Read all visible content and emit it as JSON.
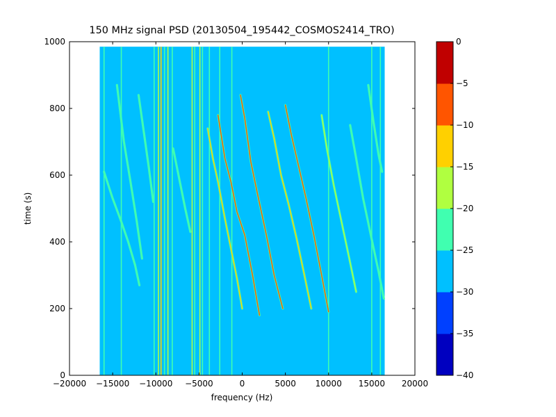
{
  "chart_data": {
    "type": "heatmap",
    "title": "150 MHz signal PSD (20130504_195442_COSMOS2414_TRO)",
    "xlabel": "frequency (Hz)",
    "ylabel": "time (s)",
    "xlim": [
      -20000,
      20000
    ],
    "ylim": [
      0,
      1000
    ],
    "x_ticks": [
      -20000,
      -15000,
      -10000,
      -5000,
      0,
      5000,
      10000,
      15000,
      20000
    ],
    "x_tick_labels": [
      "−20000",
      "−15000",
      "−10000",
      "−5000",
      "0",
      "5000",
      "10000",
      "15000",
      "20000"
    ],
    "y_ticks": [
      0,
      200,
      400,
      600,
      800,
      1000
    ],
    "y_tick_labels": [
      "0",
      "200",
      "400",
      "600",
      "800",
      "1000"
    ],
    "data_extent": {
      "freq_min": -16500,
      "freq_max": 16500,
      "time_min": 0,
      "time_max": 985
    },
    "background_level": -27.5,
    "background_color": "#00c0ff",
    "colorbar": {
      "levels": [
        -40,
        -35,
        -30,
        -25,
        -20,
        -15,
        -10,
        -5,
        0
      ],
      "tick_labels": [
        "−40",
        "−35",
        "−30",
        "−25",
        "−20",
        "−15",
        "−10",
        "−5",
        "0"
      ],
      "colors": [
        "#0000c0",
        "#0040ff",
        "#00c0ff",
        "#40ffb0",
        "#b0ff40",
        "#ffd000",
        "#ff5500",
        "#c00000"
      ]
    },
    "vertical_lines": [
      {
        "freq": -16000,
        "level": -22
      },
      {
        "freq": -14000,
        "level": -22
      },
      {
        "freq": -10200,
        "level": -22
      },
      {
        "freq": -9700,
        "level": -17
      },
      {
        "freq": -9400,
        "level": -12
      },
      {
        "freq": -9000,
        "level": -22
      },
      {
        "freq": -8600,
        "level": -17
      },
      {
        "freq": -8100,
        "level": -22
      },
      {
        "freq": -5800,
        "level": -17
      },
      {
        "freq": -5500,
        "level": -22
      },
      {
        "freq": -4900,
        "level": -17
      },
      {
        "freq": -4600,
        "level": -22
      },
      {
        "freq": -3800,
        "level": -22
      },
      {
        "freq": -2600,
        "level": -22
      },
      {
        "freq": -1200,
        "level": -22
      },
      {
        "freq": 10000,
        "level": -22
      },
      {
        "freq": 15000,
        "level": -22
      },
      {
        "freq": 16000,
        "level": -22
      }
    ],
    "series": [
      {
        "x": [
          -16000,
          -15000,
          -14000,
          -13200,
          -12400,
          -11900
        ],
        "y": [
          610,
          530,
          460,
          400,
          330,
          270
        ],
        "level": -22
      },
      {
        "x": [
          -14500,
          -13700,
          -13000,
          -12200,
          -11600
        ],
        "y": [
          870,
          700,
          590,
          460,
          350
        ],
        "level": -22
      },
      {
        "x": [
          -12000,
          -11400,
          -10800,
          -10300
        ],
        "y": [
          840,
          730,
          620,
          520
        ],
        "level": -22
      },
      {
        "x": [
          -8000,
          -7300,
          -6600,
          -6000
        ],
        "y": [
          680,
          590,
          500,
          430
        ],
        "level": -22
      },
      {
        "x": [
          -4000,
          -3400,
          -2800,
          -2000,
          -1300,
          -600,
          0
        ],
        "y": [
          740,
          650,
          580,
          470,
          380,
          290,
          200
        ],
        "level": -12
      },
      {
        "x": [
          -2800,
          -2000,
          -1300,
          -600,
          300,
          1200,
          2000
        ],
        "y": [
          780,
          650,
          580,
          490,
          420,
          300,
          180
        ],
        "level": -7
      },
      {
        "x": [
          -200,
          300,
          1000,
          1800,
          2800,
          3700,
          4700
        ],
        "y": [
          840,
          770,
          640,
          540,
          420,
          300,
          200
        ],
        "level": -7
      },
      {
        "x": [
          3000,
          3700,
          4500,
          5400,
          6300,
          7200,
          8000
        ],
        "y": [
          790,
          710,
          600,
          510,
          410,
          300,
          200
        ],
        "level": -12
      },
      {
        "x": [
          5000,
          5700,
          6500,
          7400,
          8300,
          9200,
          10000
        ],
        "y": [
          810,
          720,
          630,
          530,
          420,
          300,
          190
        ],
        "level": -7
      },
      {
        "x": [
          9200,
          9800,
          10600,
          11500,
          12400,
          13200
        ],
        "y": [
          780,
          680,
          570,
          460,
          350,
          250
        ],
        "level": -17
      },
      {
        "x": [
          12500,
          13200,
          14000,
          14900,
          15800,
          16400
        ],
        "y": [
          750,
          650,
          530,
          420,
          310,
          230
        ],
        "level": -22
      },
      {
        "x": [
          14600,
          15200,
          15800,
          16200
        ],
        "y": [
          870,
          760,
          660,
          610
        ],
        "level": -22
      }
    ]
  }
}
